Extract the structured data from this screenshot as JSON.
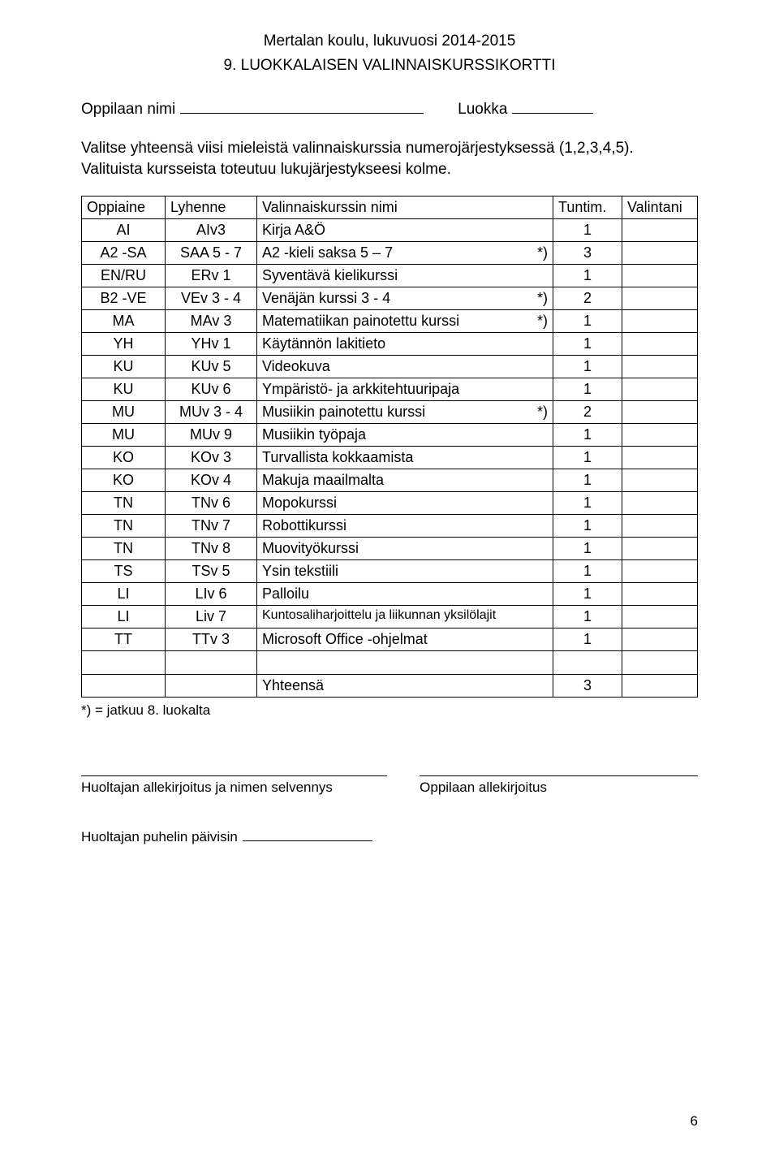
{
  "header": "Mertalan koulu, lukuvuosi 2014-2015",
  "title": "9. LUOKKALAISEN VALINNAISKURSSIKORTTI",
  "labels": {
    "name": "Oppilaan nimi",
    "class": "Luokka"
  },
  "intro": "Valitse yhteensä viisi mieleistä valinnaiskurssia numerojärjestyksessä (1,2,3,4,5). Valituista kursseista toteutuu lukujärjestykseesi kolme.",
  "table": {
    "headers": {
      "oppiaine": "Oppiaine",
      "lyhenne": "Lyhenne",
      "nimi": "Valinnaiskurssin nimi",
      "tuntim": "Tuntim.",
      "valintani": "Valintani"
    },
    "rows": [
      {
        "opp": "AI",
        "lyh": "AIv3",
        "nimi": "Kirja A&Ö",
        "star": "",
        "tun": "1"
      },
      {
        "opp": "A2 -SA",
        "lyh": "SAA 5 - 7",
        "nimi": "A2 -kieli saksa 5 – 7",
        "star": "*)",
        "tun": "3"
      },
      {
        "opp": "EN/RU",
        "lyh": "ERv 1",
        "nimi": "Syventävä kielikurssi",
        "star": "",
        "tun": "1"
      },
      {
        "opp": "B2 -VE",
        "lyh": "VEv 3 - 4",
        "nimi": "Venäjän kurssi 3 - 4",
        "star": "*)",
        "tun": "2"
      },
      {
        "opp": "MA",
        "lyh": "MAv 3",
        "nimi": "Matematiikan painotettu kurssi",
        "star": "*)",
        "tun": "1"
      },
      {
        "opp": "YH",
        "lyh": "YHv 1",
        "nimi": "Käytännön lakitieto",
        "star": "",
        "tun": "1"
      },
      {
        "opp": "KU",
        "lyh": "KUv 5",
        "nimi": "Videokuva",
        "star": "",
        "tun": "1"
      },
      {
        "opp": "KU",
        "lyh": "KUv 6",
        "nimi": "Ympäristö- ja arkkitehtuuripaja",
        "star": "",
        "tun": "1"
      },
      {
        "opp": "MU",
        "lyh": "MUv 3 - 4",
        "nimi": "Musiikin painotettu kurssi",
        "star": "*)",
        "tun": "2"
      },
      {
        "opp": "MU",
        "lyh": "MUv 9",
        "nimi": "Musiikin työpaja",
        "star": "",
        "tun": "1"
      },
      {
        "opp": "KO",
        "lyh": "KOv 3",
        "nimi": "Turvallista kokkaamista",
        "star": "",
        "tun": "1"
      },
      {
        "opp": "KO",
        "lyh": "KOv 4",
        "nimi": "Makuja maailmalta",
        "star": "",
        "tun": "1"
      },
      {
        "opp": "TN",
        "lyh": "TNv 6",
        "nimi": "Mopokurssi",
        "star": "",
        "tun": "1"
      },
      {
        "opp": "TN",
        "lyh": "TNv 7",
        "nimi": "Robottikurssi",
        "star": "",
        "tun": "1"
      },
      {
        "opp": "TN",
        "lyh": "TNv 8",
        "nimi": "Muovityökurssi",
        "star": "",
        "tun": "1"
      },
      {
        "opp": "TS",
        "lyh": "TSv 5",
        "nimi": "Ysin tekstiili",
        "star": "",
        "tun": "1"
      },
      {
        "opp": "LI",
        "lyh": "LIv 6",
        "nimi": "Palloilu",
        "star": "",
        "tun": "1"
      },
      {
        "opp": "LI",
        "lyh": "Liv 7",
        "nimi": "Kuntosaliharjoittelu ja liikunnan yksilölajit",
        "star": "",
        "tun": "1",
        "small": true
      },
      {
        "opp": "TT",
        "lyh": "TTv 3",
        "nimi": "Microsoft Office  -ohjelmat",
        "star": "",
        "tun": "1"
      }
    ],
    "total_label": "Yhteensä",
    "total_value": "3"
  },
  "footnote": "*) = jatkuu 8. luokalta",
  "signatures": {
    "guardian": "Huoltajan allekirjoitus ja nimen selvennys",
    "student": "Oppilaan allekirjoitus",
    "phone": "Huoltajan puhelin päivisin"
  },
  "page_number": "6"
}
